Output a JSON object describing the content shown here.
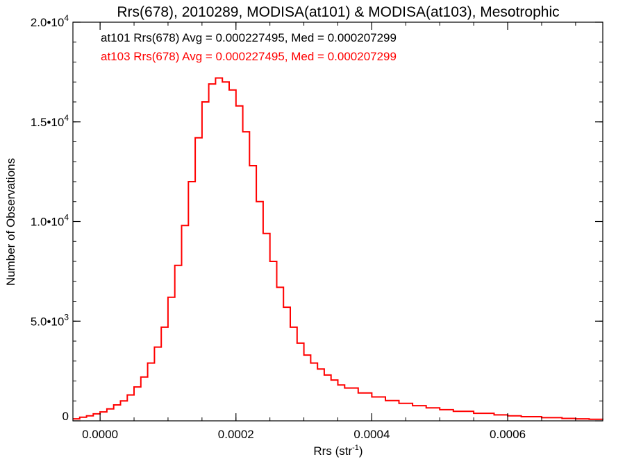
{
  "chart_data": {
    "type": "line",
    "step": true,
    "title": "Rrs(678), 2010289, MODISA(at101) & MODISA(at103), Mesotrophic",
    "xlabel": "Rrs (str",
    "xlabel_sup": "-1",
    "xlabel_close": ")",
    "ylabel": "Number of Observations",
    "xlim": [
      -4e-05,
      0.00074
    ],
    "ylim": [
      0,
      20000
    ],
    "grid": false,
    "x_ticks": [
      0.0,
      0.0002,
      0.0004,
      0.0006
    ],
    "x_tick_labels": [
      "0.0000",
      "0.0002",
      "0.0004",
      "0.0006"
    ],
    "x_minor_step": 5e-05,
    "y_ticks": [
      0,
      5000,
      10000,
      15000,
      20000
    ],
    "y_tick_labels": [
      {
        "base": "0",
        "exp": ""
      },
      {
        "base": "5.0•10",
        "exp": "3"
      },
      {
        "base": "1.0•10",
        "exp": "4"
      },
      {
        "base": "1.5•10",
        "exp": "4"
      },
      {
        "base": "2.0•10",
        "exp": "4"
      }
    ],
    "y_minor_step": 1000,
    "annotations": [
      {
        "text": "at101 Rrs(678) Avg = 0.000227495, Med = 0.000207299",
        "color": "#000000"
      },
      {
        "text": "at103 Rrs(678) Avg = 0.000227495, Med = 0.000207299",
        "color": "#ff0000"
      }
    ],
    "series": [
      {
        "color": "#ff0000",
        "x": [
          -4e-05,
          -3e-05,
          -2e-05,
          -1e-05,
          0.0,
          1e-05,
          2e-05,
          3e-05,
          4e-05,
          5e-05,
          6e-05,
          7e-05,
          8e-05,
          9e-05,
          0.0001,
          0.00011,
          0.00012,
          0.00013,
          0.00014,
          0.00015,
          0.00016,
          0.00017,
          0.00018,
          0.00019,
          0.0002,
          0.00021,
          0.00022,
          0.00023,
          0.00024,
          0.00025,
          0.00026,
          0.00027,
          0.00028,
          0.00029,
          0.0003,
          0.00031,
          0.00032,
          0.00033,
          0.00034,
          0.00035,
          0.00036,
          0.00038,
          0.0004,
          0.00042,
          0.00044,
          0.00046,
          0.00048,
          0.0005,
          0.00052,
          0.00055,
          0.00058,
          0.0006,
          0.00062,
          0.00065,
          0.00068,
          0.0007,
          0.00072,
          0.00074
        ],
        "y": [
          100,
          180,
          250,
          350,
          450,
          600,
          800,
          1000,
          1300,
          1700,
          2200,
          2900,
          3700,
          4700,
          6200,
          7800,
          9800,
          12000,
          14200,
          16000,
          16900,
          17200,
          17000,
          16600,
          15800,
          14500,
          12800,
          11000,
          9400,
          8000,
          6700,
          5700,
          4700,
          3900,
          3300,
          2900,
          2600,
          2300,
          2050,
          1800,
          1650,
          1400,
          1200,
          1020,
          880,
          760,
          650,
          560,
          480,
          380,
          300,
          250,
          210,
          160,
          120,
          100,
          80,
          60
        ]
      }
    ]
  }
}
